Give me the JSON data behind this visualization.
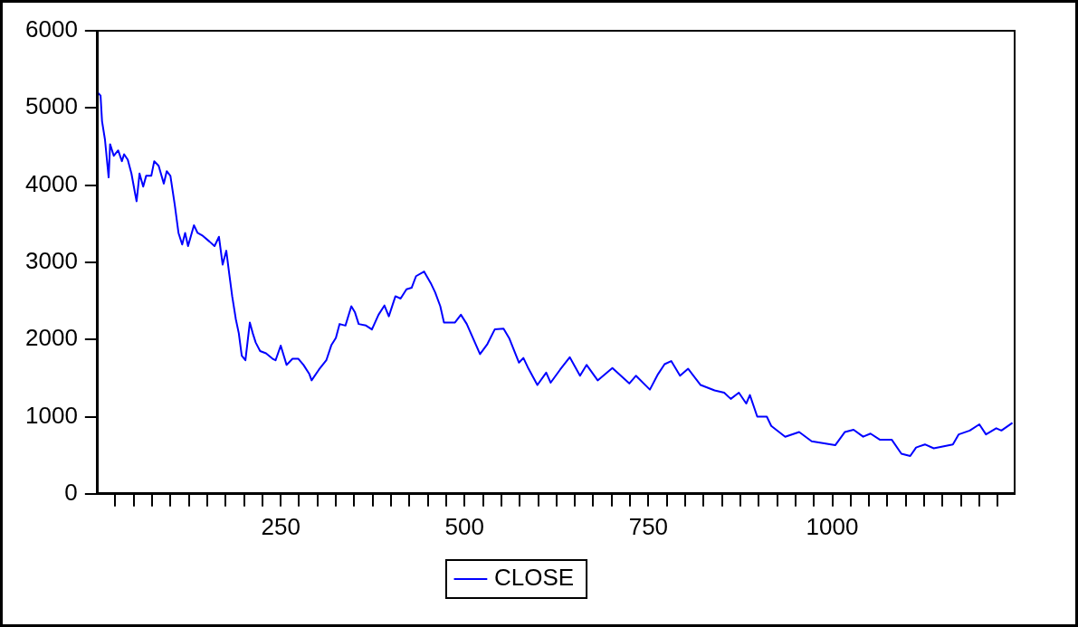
{
  "chart_data": {
    "type": "line",
    "legend": "bottom",
    "grid": false,
    "marker": "none",
    "line_style": "solid",
    "xlim": [
      1,
      1248
    ],
    "ylim": [
      0,
      6000
    ],
    "yticks": [
      0,
      1000,
      2000,
      3000,
      4000,
      5000,
      6000
    ],
    "xticks": [
      {
        "value": 25,
        "label": null
      },
      {
        "value": 50,
        "label": null
      },
      {
        "value": 75,
        "label": null
      },
      {
        "value": 100,
        "label": null
      },
      {
        "value": 125,
        "label": null
      },
      {
        "value": 150,
        "label": null
      },
      {
        "value": 175,
        "label": null
      },
      {
        "value": 200,
        "label": null
      },
      {
        "value": 225,
        "label": null
      },
      250,
      {
        "value": 275,
        "label": null
      },
      {
        "value": 300,
        "label": null
      },
      {
        "value": 325,
        "label": null
      },
      {
        "value": 350,
        "label": null
      },
      {
        "value": 375,
        "label": null
      },
      {
        "value": 400,
        "label": null
      },
      {
        "value": 425,
        "label": null
      },
      {
        "value": 450,
        "label": null
      },
      {
        "value": 475,
        "label": null
      },
      500,
      {
        "value": 525,
        "label": null
      },
      {
        "value": 550,
        "label": null
      },
      {
        "value": 575,
        "label": null
      },
      {
        "value": 600,
        "label": null
      },
      {
        "value": 625,
        "label": null
      },
      {
        "value": 650,
        "label": null
      },
      {
        "value": 675,
        "label": null
      },
      {
        "value": 700,
        "label": null
      },
      {
        "value": 725,
        "label": null
      },
      750,
      {
        "value": 775,
        "label": null
      },
      {
        "value": 800,
        "label": null
      },
      {
        "value": 825,
        "label": null
      },
      {
        "value": 850,
        "label": null
      },
      {
        "value": 875,
        "label": null
      },
      {
        "value": 900,
        "label": null
      },
      {
        "value": 925,
        "label": null
      },
      {
        "value": 950,
        "label": null
      },
      {
        "value": 975,
        "label": null
      },
      1000,
      {
        "value": 1025,
        "label": null
      },
      {
        "value": 1050,
        "label": null
      },
      {
        "value": 1075,
        "label": null
      },
      {
        "value": 1100,
        "label": null
      },
      {
        "value": 1125,
        "label": null
      },
      {
        "value": 1150,
        "label": null
      },
      {
        "value": 1175,
        "label": null
      },
      {
        "value": 1200,
        "label": null
      },
      {
        "value": 1225,
        "label": null
      }
    ],
    "series": [
      {
        "name": "CLOSE",
        "color": "#0000ff",
        "x": [
          1,
          5,
          7,
          11,
          16,
          18,
          23,
          29,
          34,
          37,
          42,
          47,
          52,
          54,
          58,
          63,
          67,
          74,
          78,
          84,
          91,
          95,
          100,
          106,
          111,
          116,
          120,
          124,
          132,
          137,
          143,
          153,
          160,
          166,
          171,
          176,
          180,
          184,
          189,
          193,
          197,
          202,
          208,
          212,
          216,
          222,
          230,
          239,
          243,
          250,
          258,
          266,
          274,
          281,
          289,
          292,
          302,
          312,
          319,
          325,
          330,
          338,
          346,
          351,
          356,
          366,
          374,
          383,
          391,
          397,
          406,
          413,
          421,
          428,
          434,
          445,
          454,
          460,
          467,
          472,
          480,
          487,
          495,
          503,
          521,
          531,
          541,
          553,
          561,
          574,
          580,
          586,
          599,
          611,
          617,
          630,
          643,
          657,
          666,
          681,
          701,
          724,
          733,
          752,
          763,
          772,
          781,
          793,
          804,
          821,
          840,
          853,
          862,
          873,
          883,
          888,
          898,
          911,
          917,
          936,
          955,
          972,
          1004,
          1017,
          1029,
          1042,
          1052,
          1065,
          1081,
          1094,
          1106,
          1114,
          1126,
          1138,
          1164,
          1172,
          1187,
          1200,
          1209,
          1223,
          1230,
          1245
        ],
        "values": [
          5200,
          5160,
          4830,
          4590,
          4100,
          4530,
          4380,
          4450,
          4310,
          4400,
          4330,
          4150,
          3890,
          3790,
          4150,
          3980,
          4120,
          4120,
          4310,
          4250,
          4020,
          4180,
          4120,
          3740,
          3380,
          3230,
          3380,
          3210,
          3480,
          3380,
          3350,
          3270,
          3210,
          3330,
          2970,
          3150,
          2850,
          2560,
          2260,
          2080,
          1790,
          1730,
          2220,
          2080,
          1960,
          1850,
          1820,
          1750,
          1730,
          1920,
          1670,
          1750,
          1750,
          1670,
          1550,
          1470,
          1610,
          1730,
          1930,
          2020,
          2200,
          2180,
          2430,
          2350,
          2200,
          2180,
          2130,
          2320,
          2440,
          2300,
          2560,
          2530,
          2650,
          2670,
          2820,
          2880,
          2730,
          2610,
          2430,
          2220,
          2220,
          2220,
          2320,
          2200,
          1810,
          1940,
          2130,
          2140,
          2010,
          1700,
          1760,
          1640,
          1410,
          1570,
          1440,
          1610,
          1770,
          1530,
          1670,
          1470,
          1630,
          1430,
          1530,
          1350,
          1550,
          1680,
          1720,
          1530,
          1620,
          1410,
          1340,
          1310,
          1230,
          1310,
          1170,
          1280,
          1000,
          1000,
          880,
          740,
          800,
          680,
          630,
          800,
          830,
          740,
          780,
          700,
          700,
          520,
          490,
          600,
          640,
          590,
          640,
          770,
          820,
          900,
          770,
          850,
          820,
          920
        ]
      }
    ]
  }
}
